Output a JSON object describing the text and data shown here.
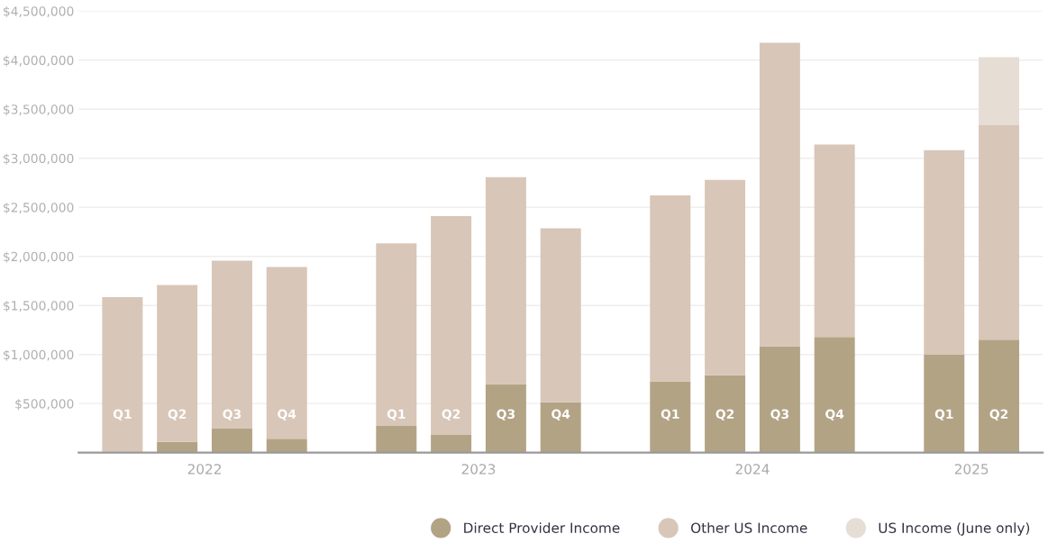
{
  "chart_data": {
    "type": "bar",
    "stacked": true,
    "categories": [
      "Q1",
      "Q2",
      "Q3",
      "Q4",
      null,
      "Q1",
      "Q2",
      "Q3",
      "Q4",
      null,
      "Q1",
      "Q2",
      "Q3",
      "Q4",
      null,
      "Q1",
      "Q2"
    ],
    "series": [
      {
        "name": "Direct Provider Income",
        "color": "#b3a385",
        "values": [
          0,
          110000,
          245000,
          142000,
          null,
          273000,
          181000,
          698000,
          513000,
          null,
          727000,
          789000,
          1085000,
          1178000,
          null,
          1002000,
          1150000
        ]
      },
      {
        "name": "Other US Income",
        "color": "#d8c6b8",
        "values": [
          1584000,
          1598000,
          1711000,
          1750000,
          null,
          1860000,
          2229000,
          2109000,
          1774000,
          null,
          1894000,
          1990000,
          3092000,
          1962000,
          null,
          2080000,
          2187000
        ]
      },
      {
        "name": "US Income (June only)",
        "color": "#e6ddd4",
        "values": [
          null,
          null,
          null,
          null,
          null,
          null,
          null,
          null,
          null,
          null,
          null,
          null,
          null,
          null,
          null,
          null,
          692000
        ]
      }
    ],
    "ylim": [
      0,
      4500000
    ],
    "yticks": [
      {
        "value": 500000,
        "label": "$500,000"
      },
      {
        "value": 1000000,
        "label": "$1,000,000"
      },
      {
        "value": 1500000,
        "label": "$1,500,000"
      },
      {
        "value": 2000000,
        "label": "$2,000,000"
      },
      {
        "value": 2500000,
        "label": "$2,500,000"
      },
      {
        "value": 3000000,
        "label": "$3,000,000"
      },
      {
        "value": 3500000,
        "label": "$3,500,000"
      },
      {
        "value": 4000000,
        "label": "$4,000,000"
      },
      {
        "value": 4500000,
        "label": "$4,500,000"
      }
    ],
    "annotations": [
      "2022",
      "2023",
      "2024",
      "2025"
    ],
    "grid": "y",
    "legend": "bottom right"
  }
}
